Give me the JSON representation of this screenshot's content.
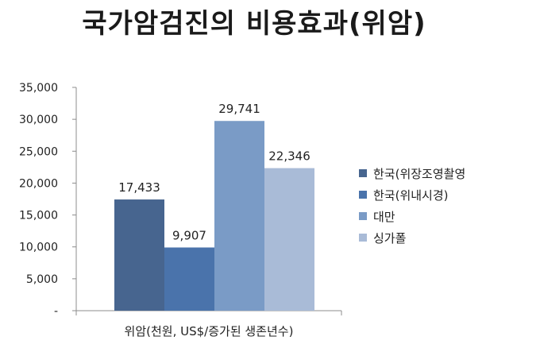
{
  "chart_data": {
    "type": "bar",
    "title": "국가암검진의 비용효과(위암)",
    "categories": [
      "위암(천원, US$/증가된 생존년수)"
    ],
    "series": [
      {
        "name": "한국(위장조영촬영",
        "values": [
          17433
        ],
        "label": "17,433",
        "color": "#47658f"
      },
      {
        "name": "한국(위내시경)",
        "values": [
          9907
        ],
        "label": "9,907",
        "color": "#4a73ab"
      },
      {
        "name": "대만",
        "values": [
          29741
        ],
        "label": "29,741",
        "color": "#7a9bc6"
      },
      {
        "name": "싱가폴",
        "values": [
          22346
        ],
        "label": "22,346",
        "color": "#a9bbd7"
      }
    ],
    "yticks": [
      "-",
      "5,000",
      "10,000",
      "15,000",
      "20,000",
      "25,000",
      "30,000",
      "35,000"
    ],
    "ylim": [
      0,
      35000
    ],
    "grid": false,
    "legend": "right"
  }
}
